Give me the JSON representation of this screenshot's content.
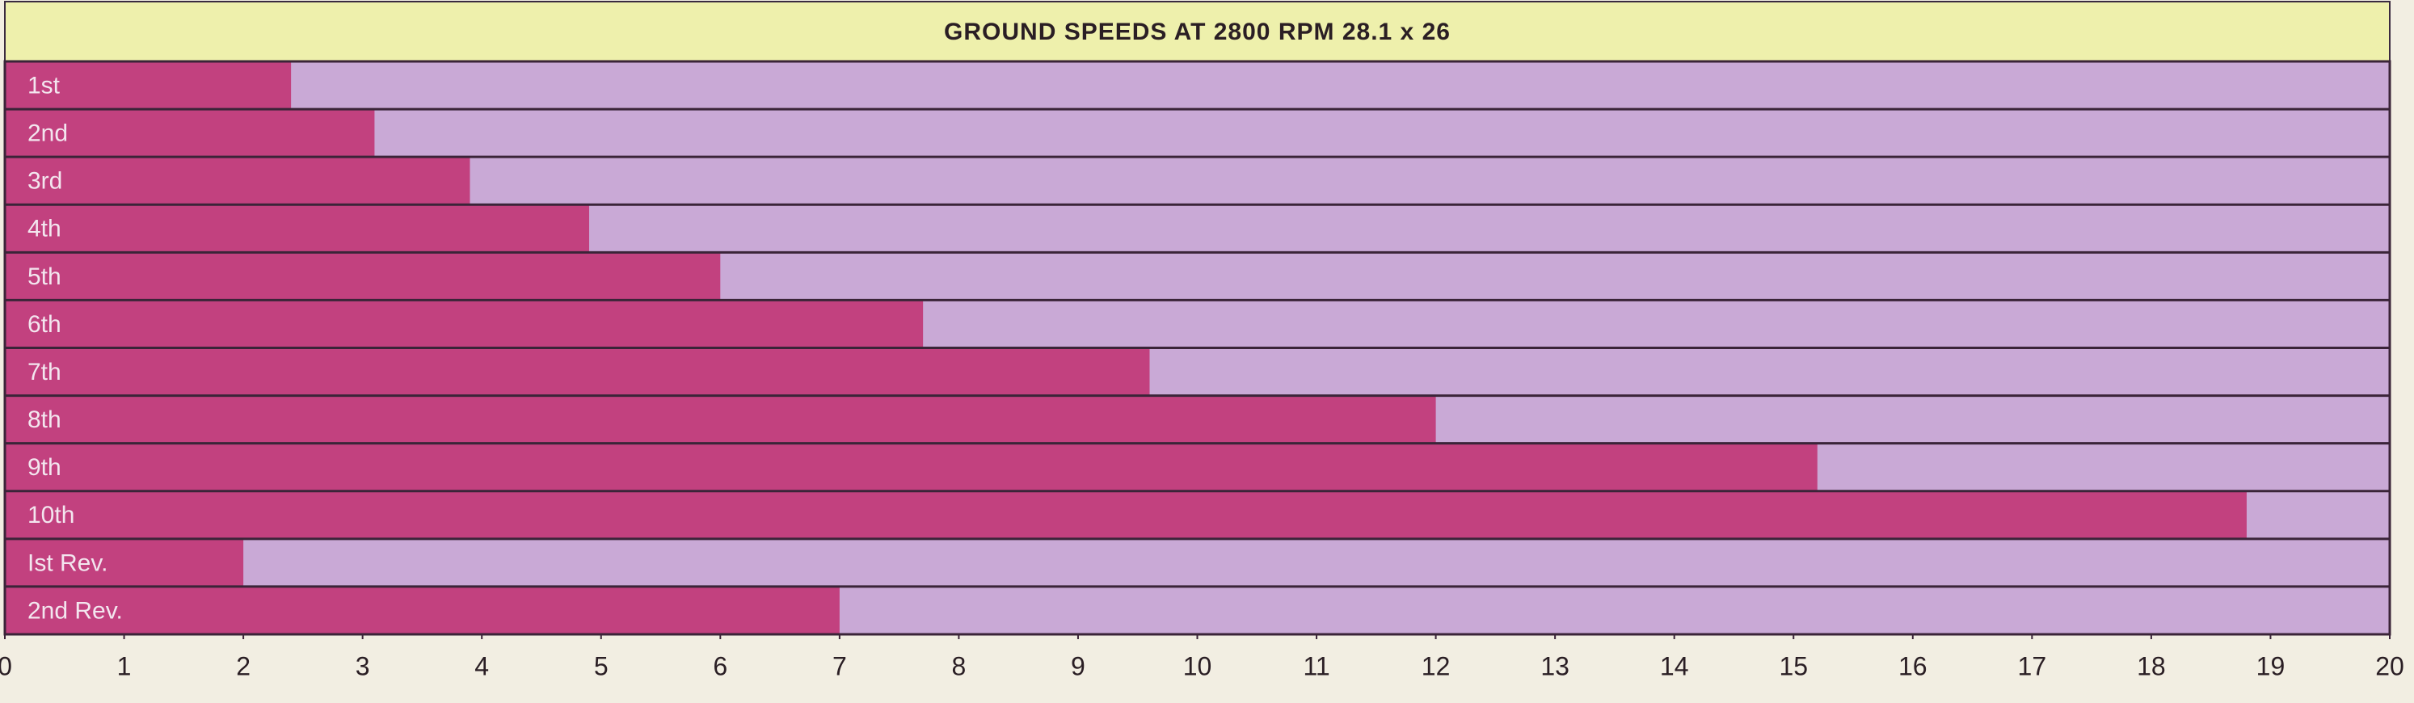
{
  "chart_data": {
    "type": "barh",
    "title": "GROUND SPEEDS AT 2800 RPM 28.1 x 26",
    "categories": [
      "1st",
      "2nd",
      "3rd",
      "4th",
      "5th",
      "6th",
      "7th",
      "8th",
      "9th",
      "10th",
      "Ist Rev.",
      "2nd Rev."
    ],
    "values": [
      2.4,
      3.1,
      3.9,
      4.9,
      6.0,
      7.7,
      9.6,
      12.0,
      15.2,
      18.8,
      2.0,
      7.0
    ],
    "color": "#c2417f",
    "background_color": "#c9a9d6",
    "title_color": "#eef0ac",
    "xlim": [
      0,
      20
    ],
    "xticks": [
      0,
      1,
      2,
      3,
      4,
      5,
      6,
      7,
      8,
      9,
      10,
      11,
      12,
      13,
      14,
      15,
      16,
      17,
      18,
      19,
      20
    ]
  }
}
